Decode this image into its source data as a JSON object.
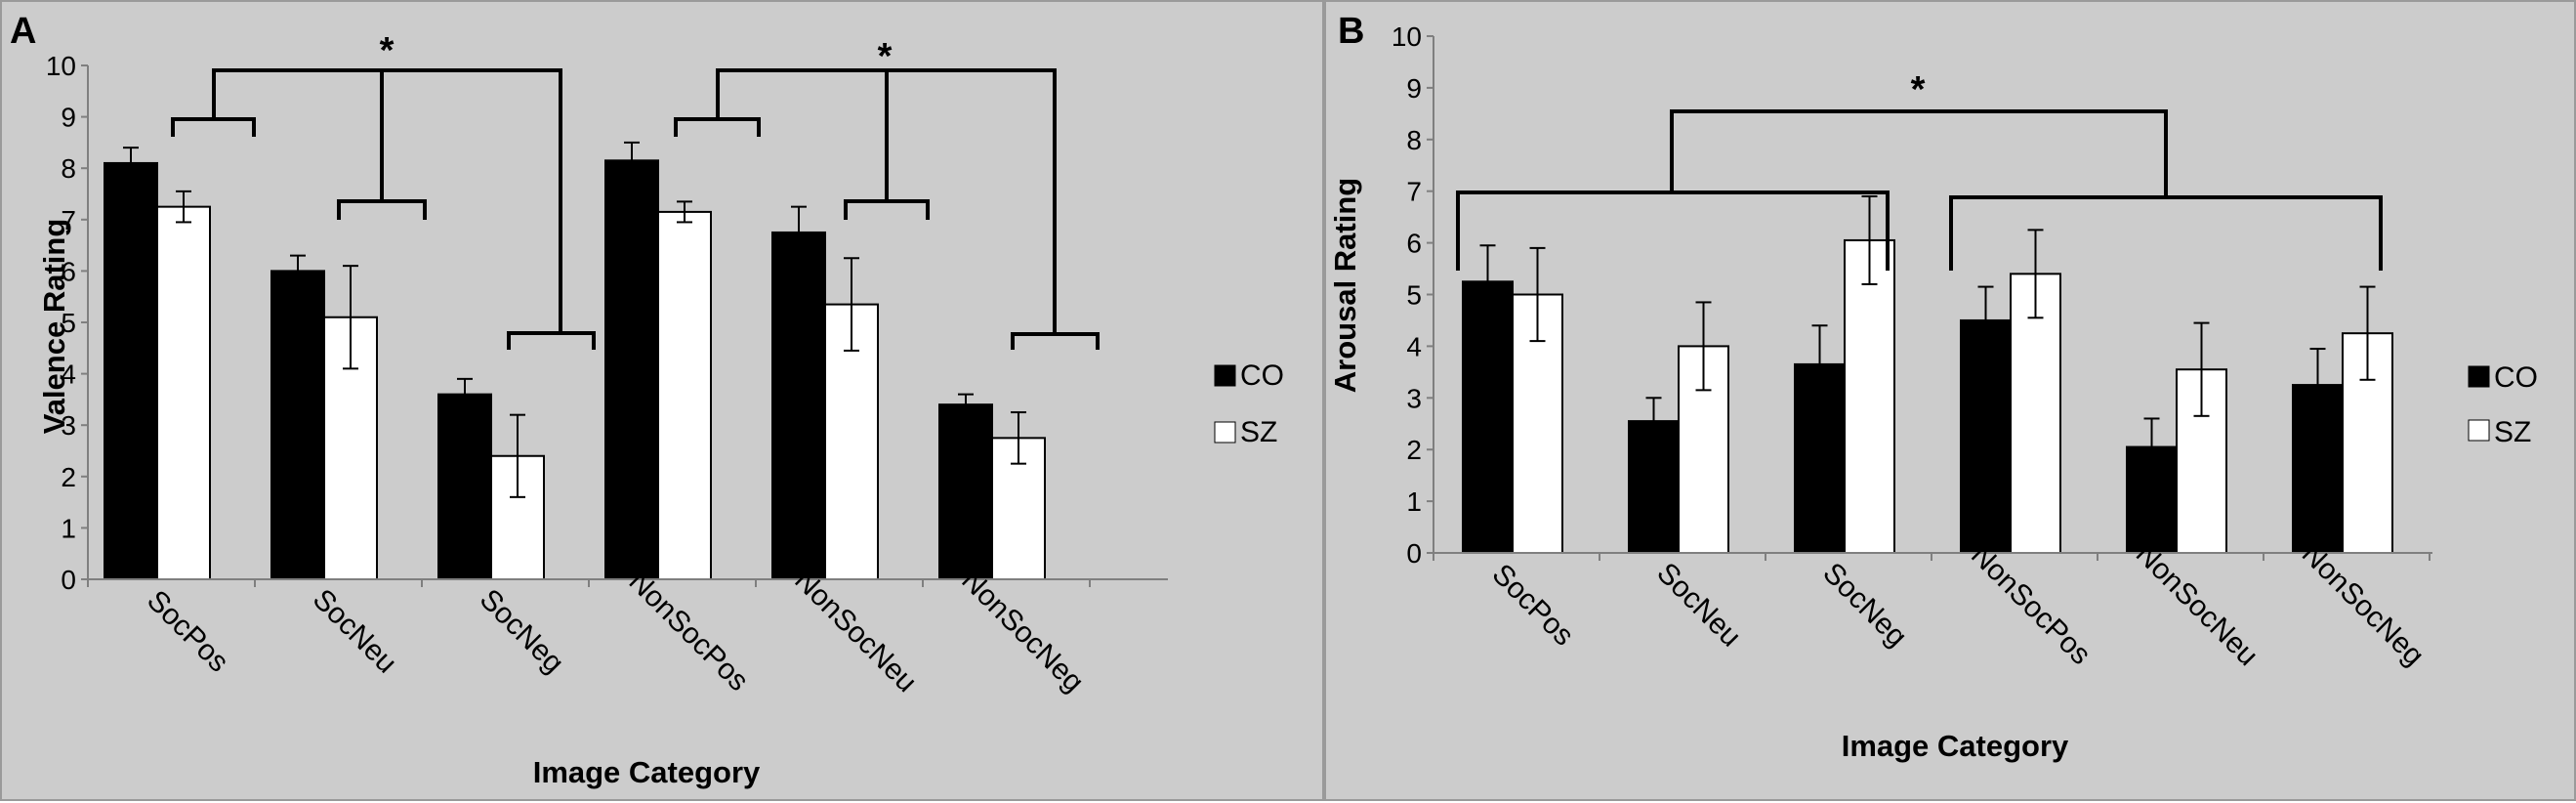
{
  "chart_data": [
    {
      "panel": "A",
      "type": "bar",
      "xlabel": "Image Category",
      "ylabel": "Valence Rating",
      "ylim": [
        0,
        10
      ],
      "yticks": [
        "0",
        "1",
        "2",
        "3",
        "4",
        "5",
        "6",
        "7",
        "8",
        "9",
        "10"
      ],
      "categories": [
        "SocPos",
        "SocNeu",
        "SocNeg",
        "NonSocPos",
        "NonSocNeu",
        "NonSocNeg"
      ],
      "series": [
        {
          "name": "CO",
          "color": "#000000",
          "values": [
            8.1,
            6.0,
            3.6,
            8.15,
            6.75,
            3.4
          ],
          "errors": [
            0.3,
            0.3,
            0.3,
            0.35,
            0.5,
            0.2
          ]
        },
        {
          "name": "SZ",
          "color": "#ffffff",
          "values": [
            7.25,
            5.1,
            2.4,
            7.15,
            5.35,
            2.75
          ],
          "errors": [
            0.3,
            1.0,
            0.8,
            0.2,
            0.9,
            0.5
          ]
        }
      ],
      "significance": "*",
      "legend_position": "right"
    },
    {
      "panel": "B",
      "type": "bar",
      "xlabel": "Image Category",
      "ylabel": "Arousal Rating",
      "ylim": [
        0,
        10
      ],
      "yticks": [
        "0",
        "1",
        "2",
        "3",
        "4",
        "5",
        "6",
        "7",
        "8",
        "9",
        "10"
      ],
      "categories": [
        "SocPos",
        "SocNeu",
        "SocNeg",
        "NonSocPos",
        "NonSocNeu",
        "NonSocNeg"
      ],
      "series": [
        {
          "name": "CO",
          "color": "#000000",
          "values": [
            5.25,
            2.55,
            3.65,
            4.5,
            2.05,
            3.25
          ],
          "errors": [
            0.7,
            0.45,
            0.75,
            0.65,
            0.55,
            0.7
          ]
        },
        {
          "name": "SZ",
          "color": "#ffffff",
          "values": [
            5.0,
            4.0,
            6.05,
            5.4,
            3.55,
            4.25
          ],
          "errors": [
            0.9,
            0.85,
            0.85,
            0.85,
            0.9,
            0.9
          ]
        }
      ],
      "significance": "*",
      "legend_position": "right"
    }
  ]
}
